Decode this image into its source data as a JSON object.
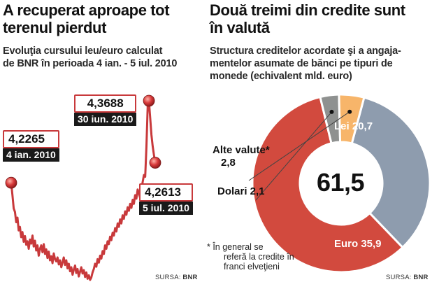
{
  "left": {
    "title_line1": "A recuperat aproape tot",
    "title_line2": "terenul pierdut",
    "subtitle_line1": "Evoluţia cursului leu/euro calculat",
    "subtitle_line2": "de BNR în perioada 4 ian. - 5 iul. 2010",
    "source_prefix": "SURSA: ",
    "source_name": "BNR"
  },
  "right": {
    "title_line1": "Două treimi din credite sunt",
    "title_line2": "în valută",
    "subtitle_line1": "Structura creditelor acordate şi a angaja-",
    "subtitle_line2": "mentelor asumate de bănci pe tipuri de",
    "subtitle_line3": "monede (echivalent mld. euro)",
    "source_prefix": "SURSA: ",
    "source_name": "BNR",
    "note_line1": "* În general se",
    "note_line2": "referă la credite în",
    "note_line3": "franci elveţieni"
  },
  "colors": {
    "line": "#c8393b",
    "marker": "#d8393a",
    "lei": "#8e9cae",
    "euro": "#d24a3e",
    "alte": "#f7b56a",
    "dolari": "#8f9190"
  },
  "chart_data": [
    {
      "type": "line",
      "title": "A recuperat aproape tot terenul pierdut",
      "subtitle": "Evoluţia cursului leu/euro calculat de BNR în perioada 4 ian. - 5 iul. 2010",
      "source": "SURSA: BNR",
      "series": [
        {
          "values": [
            4.2265,
            4.205,
            4.182,
            4.176,
            4.158,
            4.166,
            4.144,
            4.15,
            4.132,
            4.141,
            4.124,
            4.134,
            4.119,
            4.125,
            4.112,
            4.128,
            4.121,
            4.135,
            4.116,
            4.126,
            4.109,
            4.118,
            4.1,
            4.112,
            4.118,
            4.106,
            4.12,
            4.103,
            4.111,
            4.096,
            4.107,
            4.092,
            4.099,
            4.087,
            4.104,
            4.094,
            4.09,
            4.097,
            4.085,
            4.092,
            4.08,
            4.088,
            4.097,
            4.084,
            4.092,
            4.078,
            4.086,
            4.073,
            4.08,
            4.067,
            4.076,
            4.083,
            4.07,
            4.077,
            4.064,
            4.072,
            4.08,
            4.069,
            4.075,
            4.063,
            4.071,
            4.06,
            4.066,
            4.058,
            4.062,
            4.071,
            4.077,
            4.086,
            4.081,
            4.094,
            4.088,
            4.1,
            4.095,
            4.108,
            4.103,
            4.118,
            4.112,
            4.125,
            4.12,
            4.133,
            4.127,
            4.14,
            4.135,
            4.148,
            4.142,
            4.156,
            4.15,
            4.163,
            4.156,
            4.17,
            4.164,
            4.177,
            4.171,
            4.184,
            4.178,
            4.19,
            4.183,
            4.197,
            4.19,
            4.205,
            4.199,
            4.215,
            4.208,
            4.2,
            4.215,
            4.228,
            4.24,
            4.237,
            4.29,
            4.36,
            4.3688,
            4.34,
            4.31,
            4.29,
            4.275,
            4.2613
          ],
          "highlights": [
            {
              "label": "4,2265",
              "date": "4 ian. 2010",
              "value": 4.2265
            },
            {
              "label": "4,3688",
              "date": "30 iun. 2010",
              "value": 4.3688
            },
            {
              "label": "4,2613",
              "date": "5 iul. 2010",
              "value": 4.2613
            }
          ]
        }
      ]
    },
    {
      "type": "pie",
      "title": "Două treimi din credite sunt în valută",
      "total": "61,5",
      "slices": [
        {
          "name": "Lei",
          "value": 20.7,
          "label": "Lei 20,7"
        },
        {
          "name": "Euro",
          "value": 35.9,
          "label": "Euro 35,9"
        },
        {
          "name": "Dolari",
          "value": 2.1,
          "label": "Dolari 2,1"
        },
        {
          "name": "Alte valute*",
          "value": 2.8,
          "label_name": "Alte valute*",
          "label_value": "2,8"
        }
      ]
    }
  ]
}
